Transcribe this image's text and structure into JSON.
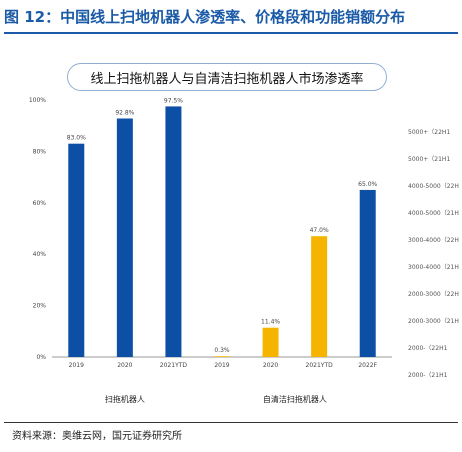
{
  "figure_title": "图 12：中国线上扫地机器人渗透率、价格段和功能销额分布",
  "source": "资料来源：奥维云网，国元证券研究所",
  "side_legend": [
    "5000+（22H1",
    "5000+（21H1",
    "4000-5000（22H",
    "4000-5000（21H",
    "3000-4000（22H",
    "3000-4000（21H",
    "2000-3000（22H",
    "2000-3000（21H",
    "2000-（22H1",
    "2000-（21H1"
  ],
  "colors": {
    "blue": "#0e4fa6",
    "yellow": "#f5b400",
    "title": "#1a5aa6"
  },
  "chart_data": {
    "type": "bar",
    "title": "线上扫拖机器人与自清洁扫拖机器人市场渗透率",
    "ylim": [
      0,
      100
    ],
    "yticks": [
      "0%",
      "20%",
      "40%",
      "60%",
      "80%",
      "100%"
    ],
    "categories": [
      "2019",
      "2020",
      "2021YTD",
      "2019",
      "2020",
      "2021YTD",
      "2022F"
    ],
    "values": [
      83.0,
      92.8,
      97.5,
      0.3,
      11.4,
      47.0,
      65.0
    ],
    "value_labels": [
      "83.0%",
      "92.8%",
      "97.5%",
      "0.3%",
      "11.4%",
      "47.0%",
      "65.0%"
    ],
    "bar_colors": [
      "blue",
      "blue",
      "blue",
      "yellow",
      "yellow",
      "yellow",
      "blue"
    ],
    "groups": [
      "扫拖机器人",
      "自清洁扫拖机器人"
    ],
    "grid": false
  }
}
